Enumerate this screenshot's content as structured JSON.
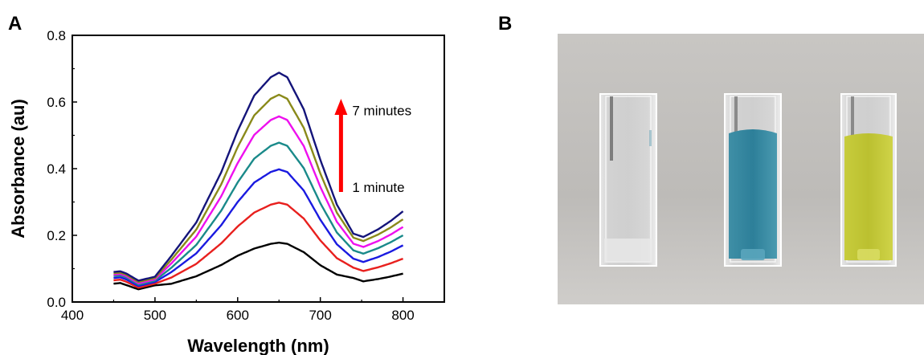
{
  "panels": {
    "a": "A",
    "b": "B"
  },
  "chart_data": {
    "type": "line",
    "xlabel": "Wavelength (nm)",
    "ylabel": "Absorbance (au)",
    "xlim": [
      400,
      850
    ],
    "ylim": [
      0.0,
      0.8
    ],
    "x_ticks": [
      400,
      500,
      600,
      700,
      800
    ],
    "y_ticks": [
      0.0,
      0.2,
      0.4,
      0.6,
      0.8
    ],
    "x_tick_labels": [
      "400",
      "500",
      "600",
      "700",
      "800"
    ],
    "y_tick_labels": [
      "0.0",
      "0.2",
      "0.4",
      "0.6",
      "0.8"
    ],
    "grid": false,
    "annotations": {
      "top": "7 minutes",
      "bottom": "1 minute"
    },
    "arrow_color": "#ff0000",
    "arrow_range": [
      0.6,
      0.33
    ],
    "arrow_x": 725,
    "series": [
      {
        "color": "#000000",
        "peak": 0.178,
        "base450": 0.055,
        "min480": 0.038,
        "min750": 0.062,
        "end800": 0.085
      },
      {
        "color": "#e8201e",
        "peak": 0.298,
        "base450": 0.065,
        "min480": 0.043,
        "min750": 0.093,
        "end800": 0.13
      },
      {
        "color": "#1a1ae0",
        "peak": 0.398,
        "base450": 0.072,
        "min480": 0.048,
        "min750": 0.12,
        "end800": 0.17
      },
      {
        "color": "#1a8a8a",
        "peak": 0.478,
        "base450": 0.078,
        "min480": 0.052,
        "min750": 0.145,
        "end800": 0.2
      },
      {
        "color": "#ee10ee",
        "peak": 0.557,
        "base450": 0.082,
        "min480": 0.056,
        "min750": 0.165,
        "end800": 0.225
      },
      {
        "color": "#8a8a1a",
        "peak": 0.622,
        "base450": 0.086,
        "min480": 0.06,
        "min750": 0.183,
        "end800": 0.248
      },
      {
        "color": "#14147a",
        "peak": 0.688,
        "base450": 0.09,
        "min480": 0.064,
        "min750": 0.195,
        "end800": 0.272
      }
    ]
  }
}
